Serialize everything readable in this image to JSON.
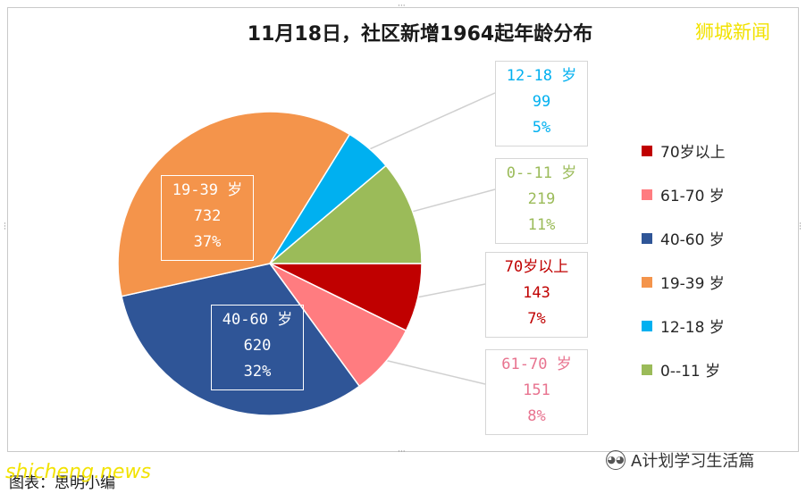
{
  "chart_data": {
    "type": "pie",
    "title": "11月18日，社区新增1964起年龄分布",
    "categories": [
      "70岁以上",
      "61-70 岁",
      "40-60 岁",
      "19-39 岁",
      "12-18 岁",
      "0--11 岁"
    ],
    "values": [
      143,
      151,
      620,
      732,
      99,
      219
    ],
    "percent_labels": [
      "7%",
      "8%",
      "32%",
      "37%",
      "5%",
      "11%"
    ],
    "slice_labels": [
      "70岁以上",
      "61-70 岁",
      "40-60 岁",
      "19-39 岁",
      "12-18 岁",
      "0--11 岁"
    ],
    "value_labels": [
      "143",
      "151",
      "620",
      "732",
      "99",
      "219"
    ],
    "colors": [
      "#c00000",
      "#ff7c80",
      "#2f5597",
      "#f4944b",
      "#00b0f0",
      "#9bbb59"
    ],
    "label_colors": [
      "#c00000",
      "#e8738f",
      "#ffffff",
      "#ffffff",
      "#00b0f0",
      "#9bbb59"
    ],
    "start_angle_deg": 90,
    "direction": "clockwise",
    "legend": {
      "position": "right",
      "items": [
        "70岁以上",
        "61-70 岁",
        "40-60 岁",
        "19-39 岁",
        "12-18 岁",
        "0--11 岁"
      ]
    }
  },
  "watermark_top": "狮城新闻",
  "watermark_bottom": "shicheng.news",
  "source_note": "图表：思明小编",
  "account_name": "A计划学习生活篇",
  "account_icon": "wechat-icon"
}
